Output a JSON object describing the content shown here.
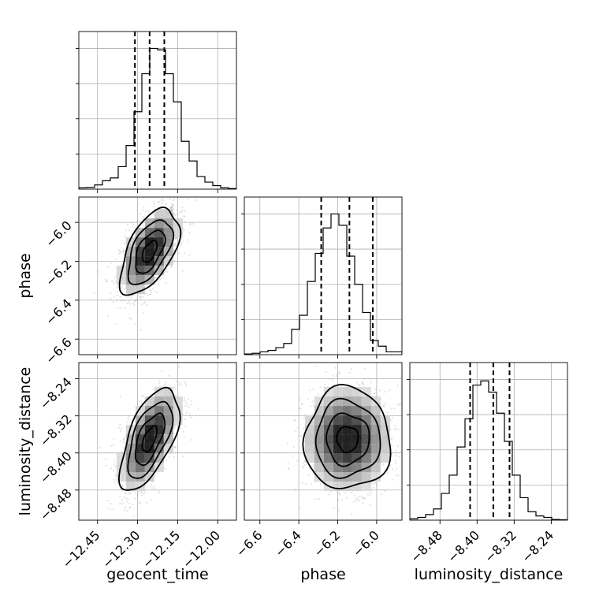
{
  "chart_data": {
    "type": "corner",
    "parameters": [
      "geocent_time",
      "phase",
      "luminosity_distance"
    ],
    "grid": true,
    "means": [
      -12.255,
      -6.15,
      -8.37
    ],
    "sigmas": [
      0.055,
      0.11,
      0.055
    ],
    "correlations": {
      "geocent_time|phase": 0.55,
      "geocent_time|luminosity_distance": 0.6,
      "phase|luminosity_distance": 0.0
    },
    "ranges": {
      "geocent_time": [
        -12.52,
        -11.93
      ],
      "phase": [
        -6.68,
        -5.87
      ],
      "luminosity_distance": [
        -8.545,
        -8.205
      ]
    },
    "ticks": {
      "geocent_time": {
        "values": [
          -12.45,
          -12.3,
          -12.15,
          -12.0
        ],
        "labels": [
          "−12.45",
          "−12.30",
          "−12.15",
          "−12.00"
        ]
      },
      "phase": {
        "values": [
          -6.6,
          -6.4,
          -6.2,
          -6.0
        ],
        "labels": [
          "−6.6",
          "−6.4",
          "−6.2",
          "−6.0"
        ]
      },
      "luminosity_distance": {
        "values": [
          -8.48,
          -8.4,
          -8.32,
          -8.24
        ],
        "labels": [
          "−8.48",
          "−8.40",
          "−8.32",
          "−8.24"
        ]
      }
    },
    "quantiles": {
      "geocent_time": [
        -12.31,
        -12.255,
        -12.2
      ],
      "phase": [
        -6.285,
        -6.14,
        -6.02
      ],
      "luminosity_distance": [
        -8.415,
        -8.365,
        -8.33
      ]
    },
    "histograms": {
      "geocent_time": [
        0.01,
        0.012,
        0.03,
        0.06,
        0.08,
        0.16,
        0.31,
        0.55,
        0.82,
        1.0,
        0.99,
        0.82,
        0.62,
        0.34,
        0.2,
        0.09,
        0.05,
        0.025,
        0.01,
        0.004
      ],
      "phase": [
        0.005,
        0.01,
        0.02,
        0.03,
        0.05,
        0.08,
        0.18,
        0.28,
        0.52,
        0.72,
        0.9,
        1.0,
        0.92,
        0.7,
        0.5,
        0.3,
        0.1,
        0.06,
        0.02,
        0.02
      ],
      "luminosity_distance": [
        0.01,
        0.02,
        0.04,
        0.08,
        0.19,
        0.32,
        0.52,
        0.72,
        0.96,
        0.99,
        0.91,
        0.76,
        0.56,
        0.32,
        0.16,
        0.06,
        0.03,
        0.02,
        0.005,
        0.003
      ]
    }
  }
}
